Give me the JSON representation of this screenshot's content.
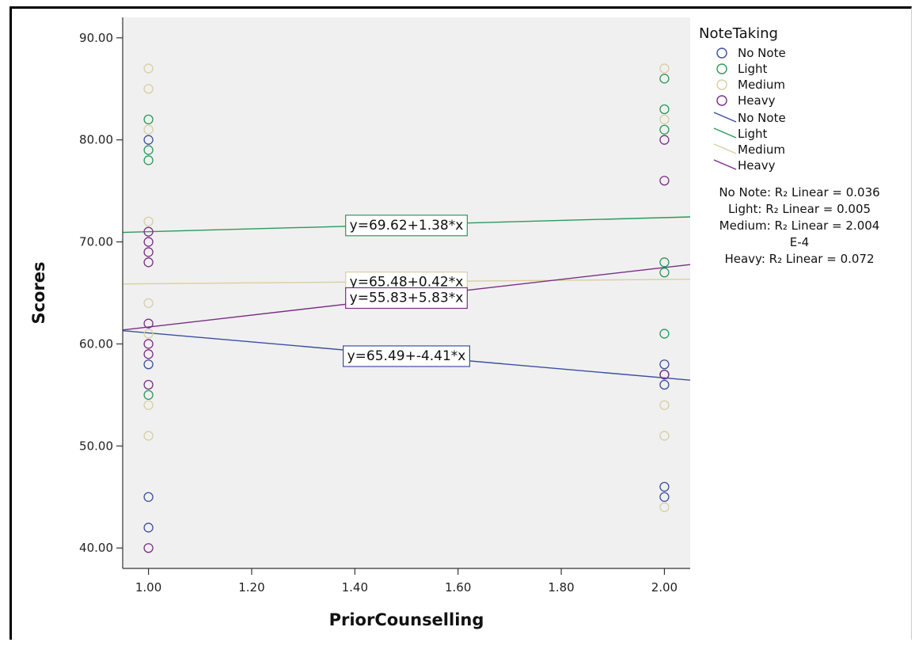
{
  "chart_data": {
    "type": "scatter",
    "xlabel": "PriorCounselling",
    "ylabel": "Scores",
    "xlim": [
      0.95,
      2.05
    ],
    "ylim": [
      38,
      92
    ],
    "x_ticks": [
      1.0,
      1.2,
      1.4,
      1.6,
      1.8,
      2.0
    ],
    "x_tick_labels": [
      "1.00",
      "1.20",
      "1.40",
      "1.60",
      "1.80",
      "2.00"
    ],
    "y_ticks": [
      40,
      50,
      60,
      70,
      80,
      90
    ],
    "y_tick_labels": [
      "40.00",
      "50.00",
      "60.00",
      "70.00",
      "80.00",
      "90.00"
    ],
    "grid": false,
    "legend_title": "NoteTaking",
    "legend_position": "right",
    "series": [
      {
        "name": "No Note",
        "color": "#3a4fa0",
        "points": [
          [
            1,
            80
          ],
          [
            1,
            58
          ],
          [
            1,
            45
          ],
          [
            1,
            42
          ],
          [
            2,
            58
          ],
          [
            2,
            57
          ],
          [
            2,
            56
          ],
          [
            2,
            46
          ],
          [
            2,
            45
          ]
        ],
        "fit": {
          "intercept": 65.49,
          "slope": -4.41,
          "label": "y=65.49+-4.41*x",
          "r2_label": "No Note: R₂ Linear = 0.036"
        }
      },
      {
        "name": "Light",
        "color": "#2a9a5a",
        "points": [
          [
            1,
            82
          ],
          [
            1,
            79
          ],
          [
            1,
            78
          ],
          [
            1,
            55
          ],
          [
            2,
            86
          ],
          [
            2,
            83
          ],
          [
            2,
            81
          ],
          [
            2,
            68
          ],
          [
            2,
            67
          ],
          [
            2,
            61
          ]
        ],
        "fit": {
          "intercept": 69.62,
          "slope": 1.38,
          "label": "y=69.62+1.38*x",
          "r2_label": "Light: R₂ Linear = 0.005"
        }
      },
      {
        "name": "Medium",
        "color": "#d8cfa0",
        "points": [
          [
            1,
            87
          ],
          [
            1,
            85
          ],
          [
            1,
            81
          ],
          [
            1,
            72
          ],
          [
            1,
            64
          ],
          [
            1,
            61
          ],
          [
            1,
            54
          ],
          [
            1,
            51
          ],
          [
            2,
            87
          ],
          [
            2,
            82
          ],
          [
            2,
            54
          ],
          [
            2,
            51
          ],
          [
            2,
            44
          ]
        ],
        "fit": {
          "intercept": 65.48,
          "slope": 0.42,
          "label": "y=65.48+0.42*x",
          "r2_label": "Medium: R₂ Linear = 2.004",
          "r2_label_cont": "E-4"
        }
      },
      {
        "name": "Heavy",
        "color": "#7a2f85",
        "points": [
          [
            1,
            71
          ],
          [
            1,
            70
          ],
          [
            1,
            69
          ],
          [
            1,
            68
          ],
          [
            1,
            62
          ],
          [
            1,
            60
          ],
          [
            1,
            59
          ],
          [
            1,
            56
          ],
          [
            1,
            40
          ],
          [
            2,
            80
          ],
          [
            2,
            76
          ],
          [
            2,
            57
          ]
        ],
        "fit": {
          "intercept": 55.83,
          "slope": 5.83,
          "label": "y=55.83+5.83*x",
          "r2_label": "Heavy: R₂ Linear = 0.072"
        }
      }
    ]
  },
  "colors": {
    "plot_background": "#f0f0f0",
    "axis": "#333333"
  }
}
